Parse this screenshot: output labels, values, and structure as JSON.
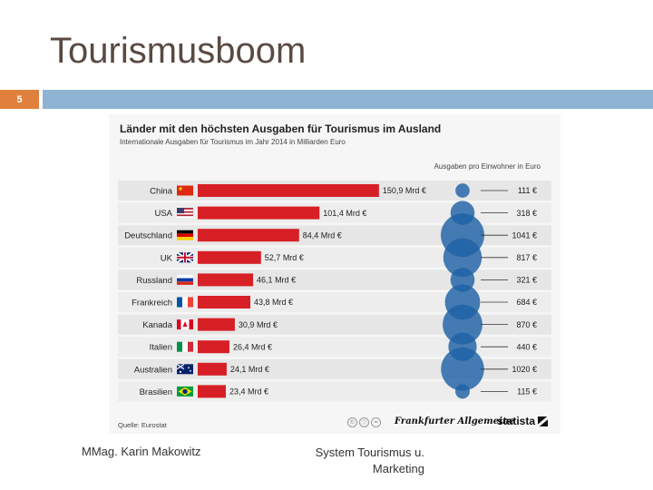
{
  "slide": {
    "title": "Tourismusboom",
    "number": "5",
    "footer_left": "MMag. Karin Makowitz",
    "footer_right_line1": "System Tourismus u.",
    "footer_right_line2": "Marketing"
  },
  "colors": {
    "bar": "#d71f26",
    "bubble": "#1f62a6",
    "accent_orange": "#e1803d",
    "accent_blue": "#8fb3d2"
  },
  "chart_data": {
    "type": "bar",
    "orientation": "horizontal",
    "title": "Länder mit den höchsten Ausgaben für Tourismus im Ausland",
    "subtitle": "Internationale Ausgaben für Tourismus im Jahr 2014 in Milliarden Euro",
    "categories": [
      "China",
      "USA",
      "Deutschland",
      "UK",
      "Russland",
      "Frankreich",
      "Kanada",
      "Italien",
      "Australien",
      "Brasilien"
    ],
    "values": [
      150.9,
      101.4,
      84.4,
      52.7,
      46.1,
      43.8,
      30.9,
      26.4,
      24.1,
      23.4
    ],
    "value_labels": [
      "150,9 Mrd €",
      "101,4 Mrd €",
      "84,4 Mrd €",
      "52,7 Mrd €",
      "46,1 Mrd €",
      "43,8 Mrd €",
      "30,9 Mrd €",
      "26,4 Mrd €",
      "24,1 Mrd €",
      "23,4 Mrd €"
    ],
    "flags": [
      "flag-cn",
      "flag-us",
      "flag-de",
      "flag-uk",
      "flag-ru",
      "flag-fr",
      "flag-ca",
      "flag-it",
      "flag-au",
      "flag-br"
    ],
    "per_capita_header": "Ausgaben pro Einwohner in Euro",
    "per_capita_values": [
      111,
      318,
      1041,
      817,
      321,
      684,
      870,
      440,
      1020,
      115
    ],
    "per_capita_labels": [
      "111 €",
      "318 €",
      "1041 €",
      "817 €",
      "321 €",
      "684 €",
      "870 €",
      "440 €",
      "1020 €",
      "115 €"
    ],
    "source": "Quelle: Eurostat",
    "publisher_logo": "Frankfurter Allgemeine",
    "brand_logo": "statista"
  }
}
